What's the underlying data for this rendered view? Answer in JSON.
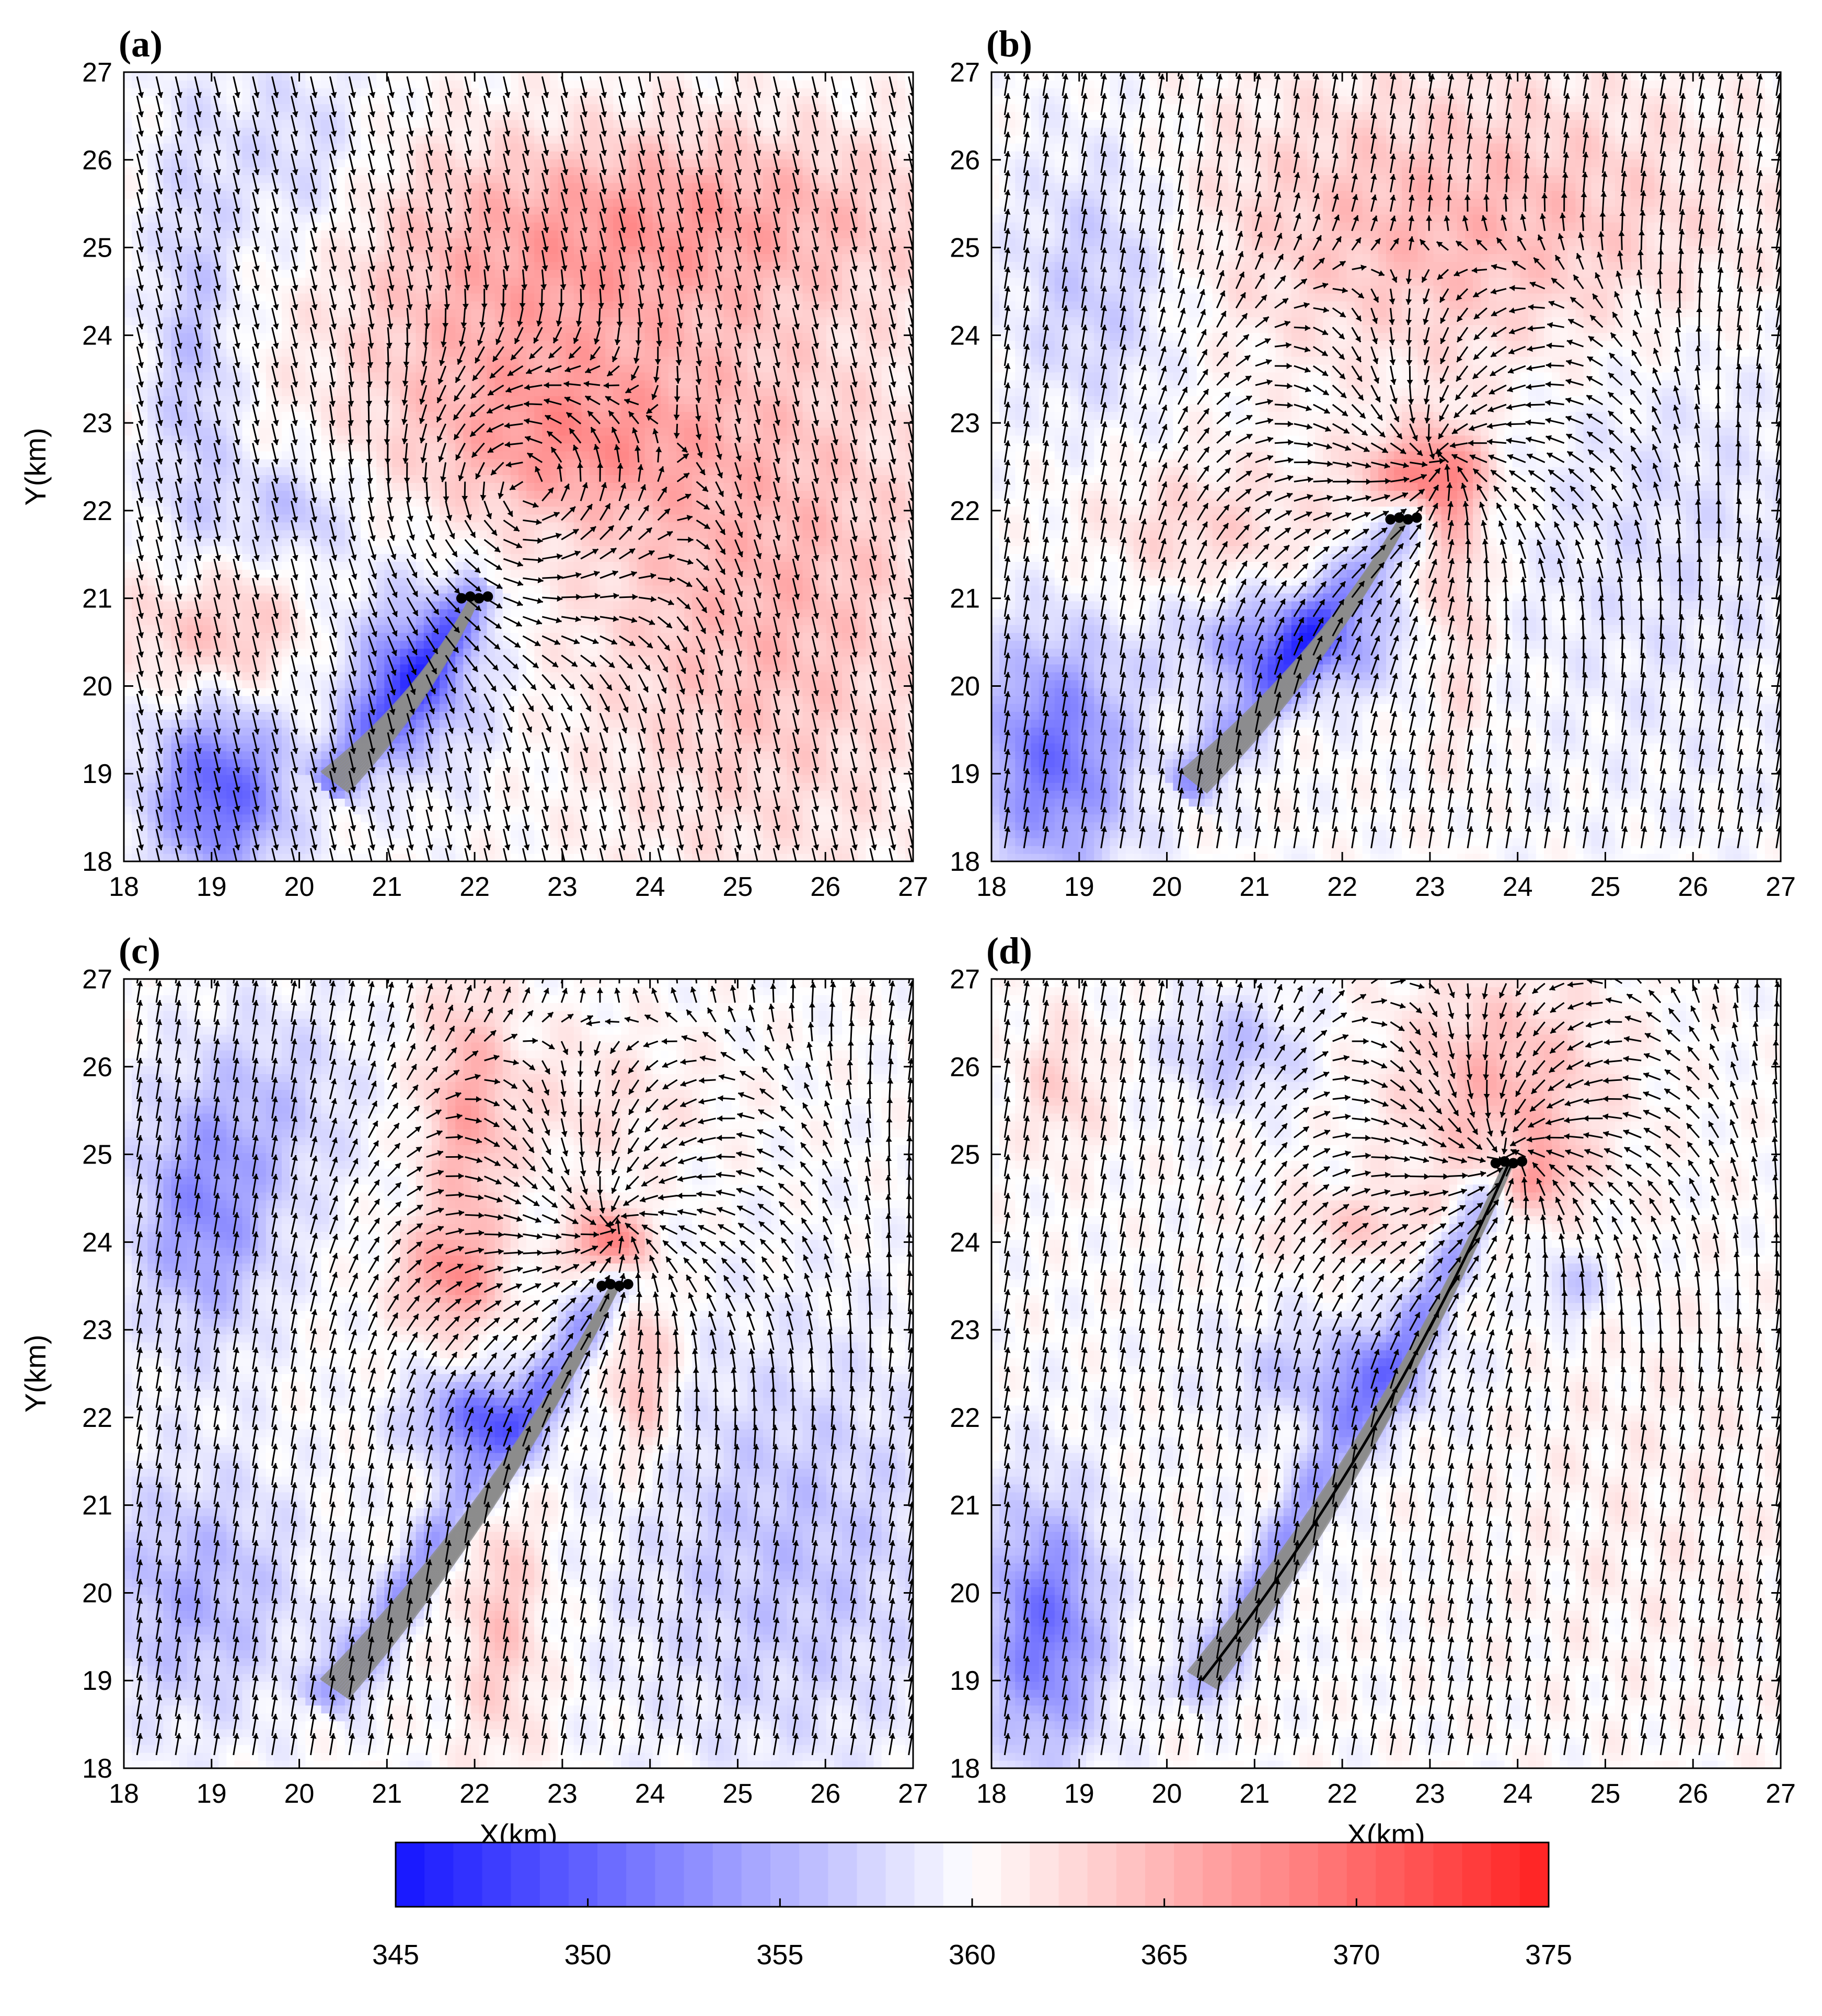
{
  "figure": {
    "colormap": {
      "low": "#1414ff",
      "mid": "#ffffff",
      "high": "#ff2020"
    },
    "colorbar": {
      "min": 345,
      "max": 375,
      "ticks": [
        345,
        350,
        355,
        360,
        365,
        370,
        375
      ],
      "levels": 40
    },
    "quiver_color": "#000000",
    "trajectory_color": "#8c8c8c"
  },
  "chart_data": [
    {
      "type": "heatmap",
      "panel_label": "(a)",
      "xlabel": "",
      "ylabel": "Y(km)",
      "xlim": [
        18,
        27
      ],
      "ylim": [
        18,
        27
      ],
      "xticks": [
        18,
        19,
        20,
        21,
        22,
        23,
        24,
        25,
        26,
        27
      ],
      "yticks": [
        18,
        19,
        20,
        21,
        22,
        23,
        24,
        25,
        26,
        27
      ],
      "circulation_center": [
        22.6,
        22.2
      ],
      "wind_regime": "northwest_vortex_south_flow",
      "trajectory_start": [
        20.4,
        18.9
      ],
      "trajectory_end": [
        22.0,
        21.0
      ],
      "show_black_trajectory": false,
      "field_blobs": [
        {
          "x": 24.5,
          "y": 25.4,
          "rx": 3.0,
          "ry": 1.0,
          "v": 5
        },
        {
          "x": 22.5,
          "y": 24.0,
          "rx": 2.2,
          "ry": 1.6,
          "v": 5
        },
        {
          "x": 25.3,
          "y": 21.2,
          "rx": 2.0,
          "ry": 3.0,
          "v": 5
        },
        {
          "x": 23.0,
          "y": 22.7,
          "rx": 1.5,
          "ry": 0.8,
          "v": 4
        },
        {
          "x": 19.0,
          "y": 20.6,
          "rx": 1.0,
          "ry": 0.8,
          "v": 5
        },
        {
          "x": 19.1,
          "y": 18.8,
          "rx": 0.8,
          "ry": 1.0,
          "v": -10
        },
        {
          "x": 21.3,
          "y": 20.1,
          "rx": 0.8,
          "ry": 1.0,
          "v": -8
        },
        {
          "x": 18.8,
          "y": 23.8,
          "rx": 0.5,
          "ry": 2.8,
          "v": -4
        },
        {
          "x": 20.0,
          "y": 26.0,
          "rx": 0.8,
          "ry": 1.2,
          "v": -3
        },
        {
          "x": 19.9,
          "y": 22.0,
          "rx": 0.7,
          "ry": 0.6,
          "v": -4
        }
      ]
    },
    {
      "type": "heatmap",
      "panel_label": "(b)",
      "xlabel": "",
      "ylabel": "",
      "xlim": [
        18,
        27
      ],
      "ylim": [
        18,
        27
      ],
      "xticks": [
        18,
        19,
        20,
        21,
        22,
        23,
        24,
        25,
        26,
        27
      ],
      "yticks": [
        18,
        19,
        20,
        21,
        22,
        23,
        24,
        25,
        26,
        27
      ],
      "circulation_center": [
        23.1,
        22.6
      ],
      "wind_regime": "converging",
      "trajectory_start": [
        20.3,
        18.9
      ],
      "trajectory_end": [
        22.7,
        21.9
      ],
      "show_black_trajectory": false,
      "field_blobs": [
        {
          "x": 23.5,
          "y": 25.3,
          "rx": 3.2,
          "ry": 1.6,
          "v": 5
        },
        {
          "x": 22.9,
          "y": 22.4,
          "rx": 0.7,
          "ry": 0.5,
          "v": 8
        },
        {
          "x": 23.3,
          "y": 21.2,
          "rx": 0.4,
          "ry": 1.8,
          "v": 4
        },
        {
          "x": 20.4,
          "y": 21.8,
          "rx": 1.4,
          "ry": 0.8,
          "v": 3
        },
        {
          "x": 18.7,
          "y": 19.2,
          "rx": 0.9,
          "ry": 1.4,
          "v": -9
        },
        {
          "x": 21.4,
          "y": 20.5,
          "rx": 1.2,
          "ry": 0.6,
          "v": -8
        },
        {
          "x": 19.2,
          "y": 24.7,
          "rx": 1.0,
          "ry": 1.6,
          "v": -4
        },
        {
          "x": 25.8,
          "y": 22.0,
          "rx": 2.0,
          "ry": 3.0,
          "v": -2
        }
      ]
    },
    {
      "type": "heatmap",
      "panel_label": "(c)",
      "xlabel": "X(km)",
      "ylabel": "Y(km)",
      "xlim": [
        18,
        27
      ],
      "ylim": [
        18,
        27
      ],
      "xticks": [
        18,
        19,
        20,
        21,
        22,
        23,
        24,
        25,
        26,
        27
      ],
      "yticks": [
        18,
        19,
        20,
        21,
        22,
        23,
        24,
        25,
        26,
        27
      ],
      "circulation_center": [
        23.6,
        24.2
      ],
      "wind_regime": "converging",
      "trajectory_start": [
        20.4,
        18.9
      ],
      "trajectory_end": [
        23.6,
        23.5
      ],
      "show_black_trajectory": false,
      "field_blobs": [
        {
          "x": 21.9,
          "y": 25.4,
          "rx": 0.5,
          "ry": 1.8,
          "v": 5
        },
        {
          "x": 21.7,
          "y": 23.6,
          "rx": 0.6,
          "ry": 0.6,
          "v": 6
        },
        {
          "x": 23.5,
          "y": 24.0,
          "rx": 0.4,
          "ry": 0.4,
          "v": 9
        },
        {
          "x": 23.9,
          "y": 22.5,
          "rx": 0.4,
          "ry": 1.1,
          "v": 5
        },
        {
          "x": 22.3,
          "y": 19.7,
          "rx": 0.5,
          "ry": 1.6,
          "v": 4
        },
        {
          "x": 23.3,
          "y": 25.6,
          "rx": 1.5,
          "ry": 0.8,
          "v": 2
        },
        {
          "x": 18.9,
          "y": 24.3,
          "rx": 0.8,
          "ry": 1.4,
          "v": -7
        },
        {
          "x": 18.8,
          "y": 20.0,
          "rx": 1.2,
          "ry": 1.4,
          "v": -5
        },
        {
          "x": 22.0,
          "y": 22.0,
          "rx": 0.7,
          "ry": 0.5,
          "v": -9
        },
        {
          "x": 25.6,
          "y": 20.5,
          "rx": 1.8,
          "ry": 2.4,
          "v": -4
        },
        {
          "x": 19.8,
          "y": 25.6,
          "rx": 1.0,
          "ry": 1.2,
          "v": -3
        }
      ]
    },
    {
      "type": "heatmap",
      "panel_label": "(d)",
      "xlabel": "X(km)",
      "ylabel": "",
      "xlim": [
        18,
        27
      ],
      "ylim": [
        18,
        27
      ],
      "xticks": [
        18,
        19,
        20,
        21,
        22,
        23,
        24,
        25,
        26,
        27
      ],
      "yticks": [
        18,
        19,
        20,
        21,
        22,
        23,
        24,
        25,
        26,
        27
      ],
      "circulation_center": [
        23.9,
        25.0
      ],
      "wind_regime": "converging",
      "trajectory_start": [
        20.4,
        19.0
      ],
      "trajectory_end": [
        23.9,
        24.9
      ],
      "show_black_trajectory": true,
      "field_blobs": [
        {
          "x": 23.8,
          "y": 25.8,
          "rx": 1.2,
          "ry": 1.2,
          "v": 5
        },
        {
          "x": 24.1,
          "y": 24.8,
          "rx": 0.5,
          "ry": 0.4,
          "v": 7
        },
        {
          "x": 18.8,
          "y": 25.8,
          "rx": 0.5,
          "ry": 0.8,
          "v": 3
        },
        {
          "x": 22.2,
          "y": 24.2,
          "rx": 1.0,
          "ry": 0.4,
          "v": 3
        },
        {
          "x": 18.6,
          "y": 19.6,
          "rx": 0.7,
          "ry": 1.5,
          "v": -9
        },
        {
          "x": 22.0,
          "y": 22.5,
          "rx": 1.2,
          "ry": 0.6,
          "v": -5
        },
        {
          "x": 20.8,
          "y": 26.2,
          "rx": 0.8,
          "ry": 0.6,
          "v": -4
        },
        {
          "x": 24.6,
          "y": 23.5,
          "rx": 0.4,
          "ry": 0.4,
          "v": -4
        },
        {
          "x": 25.5,
          "y": 21.0,
          "rx": 2.0,
          "ry": 2.5,
          "v": 1
        }
      ]
    }
  ]
}
